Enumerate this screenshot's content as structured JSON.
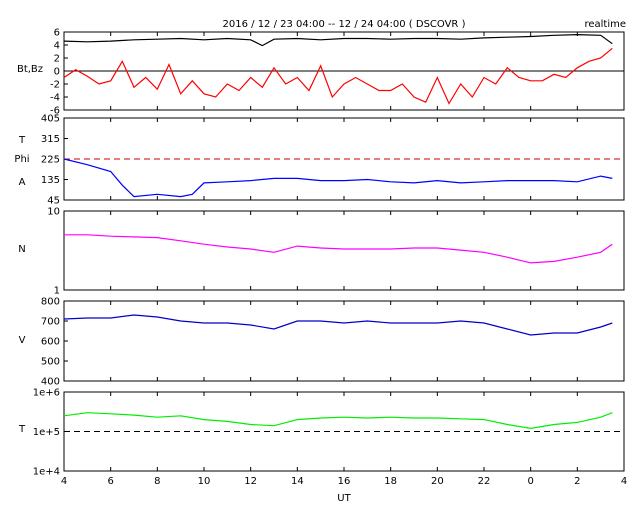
{
  "header": {
    "title": "2016 / 12 / 23   04:00  --  12 / 24   04:00  ( DSCOVR )",
    "mode": "realtime"
  },
  "colors": {
    "bt": "#000000",
    "bz": "#ff0000",
    "phi": "#0000ff",
    "phi_ref": "#cc0000",
    "density": "#ff00ff",
    "speed": "#0000cc",
    "temperature": "#00ee00",
    "temp_ref": "#000000"
  },
  "chart_data": {
    "type": "line",
    "xlabel": "UT",
    "x_ticks": [
      "4",
      "6",
      "8",
      "10",
      "12",
      "14",
      "16",
      "18",
      "20",
      "22",
      "0",
      "2",
      "4"
    ],
    "x_range_hours": [
      4,
      28
    ],
    "panels": [
      {
        "id": "bt_bz",
        "ylabel": "Bt,Bz",
        "ylim": [
          -6,
          6
        ],
        "yticks": [
          "6",
          "4",
          "2",
          "0",
          "-2",
          "-4",
          "-6"
        ],
        "reference_line": 0,
        "series": [
          {
            "key": "bt",
            "points": [
              [
                4,
                4.6
              ],
              [
                5,
                4.5
              ],
              [
                6,
                4.6
              ],
              [
                7,
                4.8
              ],
              [
                8,
                4.9
              ],
              [
                9,
                5.0
              ],
              [
                10,
                4.8
              ],
              [
                11,
                5.0
              ],
              [
                12,
                4.8
              ],
              [
                12.5,
                3.9
              ],
              [
                13,
                4.9
              ],
              [
                14,
                5.0
              ],
              [
                15,
                4.8
              ],
              [
                16,
                5.0
              ],
              [
                17,
                5.0
              ],
              [
                18,
                4.9
              ],
              [
                19,
                5.0
              ],
              [
                20,
                5.0
              ],
              [
                21,
                4.9
              ],
              [
                22,
                5.1
              ],
              [
                23,
                5.2
              ],
              [
                24,
                5.3
              ],
              [
                25,
                5.5
              ],
              [
                26,
                5.6
              ],
              [
                27,
                5.5
              ],
              [
                27.5,
                4.2
              ]
            ]
          },
          {
            "key": "bz",
            "points": [
              [
                4,
                -1
              ],
              [
                4.5,
                0.2
              ],
              [
                5,
                -0.8
              ],
              [
                5.5,
                -2
              ],
              [
                6,
                -1.5
              ],
              [
                6.5,
                1.5
              ],
              [
                7,
                -2.5
              ],
              [
                7.5,
                -1
              ],
              [
                8,
                -2.8
              ],
              [
                8.5,
                1
              ],
              [
                9,
                -3.5
              ],
              [
                9.5,
                -1.5
              ],
              [
                10,
                -3.5
              ],
              [
                10.5,
                -4
              ],
              [
                11,
                -2
              ],
              [
                11.5,
                -3
              ],
              [
                12,
                -1
              ],
              [
                12.5,
                -2.5
              ],
              [
                13,
                0.5
              ],
              [
                13.5,
                -2
              ],
              [
                14,
                -1
              ],
              [
                14.5,
                -3
              ],
              [
                15,
                0.8
              ],
              [
                15.5,
                -4
              ],
              [
                16,
                -2
              ],
              [
                16.5,
                -1
              ],
              [
                17,
                -2
              ],
              [
                17.5,
                -3
              ],
              [
                18,
                -3
              ],
              [
                18.5,
                -2
              ],
              [
                19,
                -4
              ],
              [
                19.5,
                -4.8
              ],
              [
                20,
                -1
              ],
              [
                20.5,
                -5
              ],
              [
                21,
                -2
              ],
              [
                21.5,
                -4
              ],
              [
                22,
                -1
              ],
              [
                22.5,
                -2
              ],
              [
                23,
                0.5
              ],
              [
                23.5,
                -1
              ],
              [
                24,
                -1.5
              ],
              [
                24.5,
                -1.5
              ],
              [
                25,
                -0.5
              ],
              [
                25.5,
                -1
              ],
              [
                26,
                0.5
              ],
              [
                26.5,
                1.5
              ],
              [
                27,
                2
              ],
              [
                27.5,
                3.5
              ]
            ]
          }
        ]
      },
      {
        "id": "phi",
        "ylabel_lines": [
          "T",
          "Phi",
          "A"
        ],
        "ylim": [
          45,
          405
        ],
        "yticks": [
          "405",
          "315",
          "225",
          "135",
          "45"
        ],
        "reference_line": 225,
        "series": [
          {
            "key": "phi",
            "points": [
              [
                4,
                225
              ],
              [
                5,
                200
              ],
              [
                6,
                170
              ],
              [
                6.5,
                110
              ],
              [
                7,
                60
              ],
              [
                8,
                70
              ],
              [
                9,
                60
              ],
              [
                9.5,
                70
              ],
              [
                10,
                120
              ],
              [
                11,
                125
              ],
              [
                12,
                130
              ],
              [
                13,
                140
              ],
              [
                14,
                140
              ],
              [
                15,
                130
              ],
              [
                16,
                130
              ],
              [
                17,
                135
              ],
              [
                18,
                125
              ],
              [
                19,
                120
              ],
              [
                20,
                130
              ],
              [
                21,
                120
              ],
              [
                22,
                125
              ],
              [
                23,
                130
              ],
              [
                24,
                130
              ],
              [
                25,
                130
              ],
              [
                26,
                125
              ],
              [
                27,
                150
              ],
              [
                27.5,
                140
              ]
            ]
          }
        ]
      },
      {
        "id": "density",
        "ylabel": "N",
        "ylim_log": [
          1,
          10
        ],
        "yticks": [
          "10",
          "1"
        ],
        "series": [
          {
            "key": "density",
            "points": [
              [
                4,
                5.0
              ],
              [
                5,
                5.0
              ],
              [
                6,
                4.8
              ],
              [
                7,
                4.7
              ],
              [
                8,
                4.6
              ],
              [
                9,
                4.2
              ],
              [
                10,
                3.8
              ],
              [
                11,
                3.5
              ],
              [
                12,
                3.3
              ],
              [
                13,
                3.0
              ],
              [
                14,
                3.6
              ],
              [
                15,
                3.4
              ],
              [
                16,
                3.3
              ],
              [
                17,
                3.3
              ],
              [
                18,
                3.3
              ],
              [
                19,
                3.4
              ],
              [
                20,
                3.4
              ],
              [
                21,
                3.2
              ],
              [
                22,
                3.0
              ],
              [
                23,
                2.6
              ],
              [
                24,
                2.2
              ],
              [
                25,
                2.3
              ],
              [
                26,
                2.6
              ],
              [
                27,
                3.0
              ],
              [
                27.5,
                3.8
              ]
            ]
          }
        ]
      },
      {
        "id": "speed",
        "ylabel": "V",
        "ylim": [
          400,
          800
        ],
        "yticks": [
          "800",
          "700",
          "600",
          "500",
          "400"
        ],
        "series": [
          {
            "key": "speed",
            "points": [
              [
                4,
                710
              ],
              [
                5,
                715
              ],
              [
                6,
                715
              ],
              [
                7,
                730
              ],
              [
                8,
                720
              ],
              [
                9,
                700
              ],
              [
                10,
                690
              ],
              [
                11,
                690
              ],
              [
                12,
                680
              ],
              [
                13,
                660
              ],
              [
                14,
                700
              ],
              [
                15,
                700
              ],
              [
                16,
                690
              ],
              [
                17,
                700
              ],
              [
                18,
                690
              ],
              [
                19,
                690
              ],
              [
                20,
                690
              ],
              [
                21,
                700
              ],
              [
                22,
                690
              ],
              [
                23,
                660
              ],
              [
                24,
                630
              ],
              [
                25,
                640
              ],
              [
                26,
                640
              ],
              [
                27,
                670
              ],
              [
                27.5,
                690
              ]
            ]
          }
        ]
      },
      {
        "id": "temperature",
        "ylabel": "T",
        "ylim_log": [
          10000,
          1000000
        ],
        "yticks": [
          "1e+6",
          "1e+5",
          "1e+4"
        ],
        "reference_line": 100000,
        "series": [
          {
            "key": "temperature",
            "points": [
              [
                4,
                250000
              ],
              [
                5,
                300000
              ],
              [
                6,
                280000
              ],
              [
                7,
                260000
              ],
              [
                8,
                230000
              ],
              [
                9,
                250000
              ],
              [
                10,
                200000
              ],
              [
                11,
                180000
              ],
              [
                12,
                150000
              ],
              [
                13,
                140000
              ],
              [
                14,
                200000
              ],
              [
                15,
                220000
              ],
              [
                16,
                230000
              ],
              [
                17,
                220000
              ],
              [
                18,
                230000
              ],
              [
                19,
                220000
              ],
              [
                20,
                220000
              ],
              [
                21,
                210000
              ],
              [
                22,
                200000
              ],
              [
                23,
                150000
              ],
              [
                24,
                120000
              ],
              [
                25,
                150000
              ],
              [
                26,
                170000
              ],
              [
                27,
                230000
              ],
              [
                27.5,
                300000
              ]
            ]
          }
        ]
      }
    ]
  }
}
